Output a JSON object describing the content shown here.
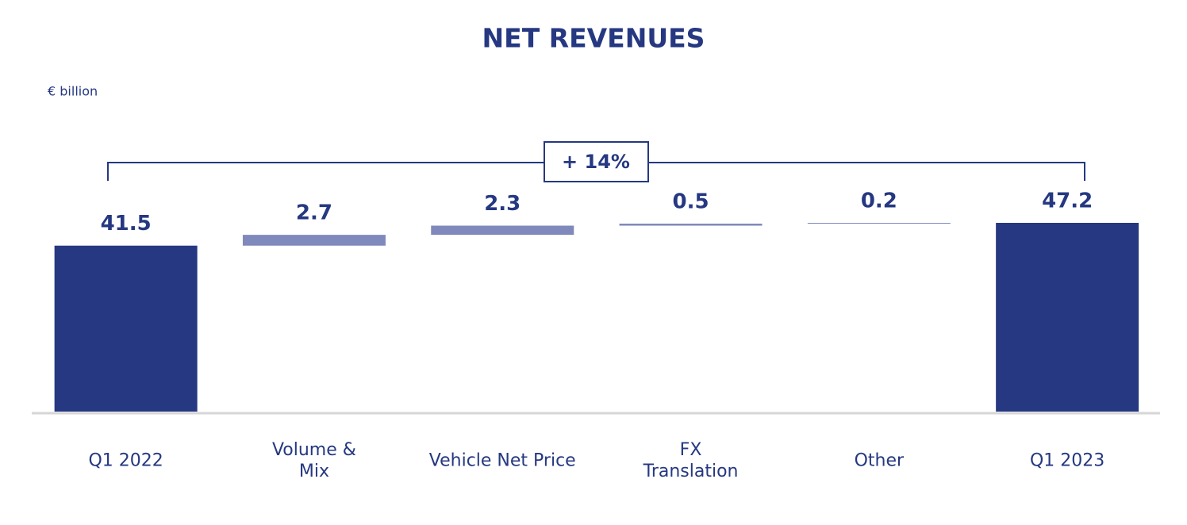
{
  "chart_data": {
    "type": "waterfall",
    "title": "NET REVENUES",
    "unit_label": "€ billion",
    "categories": [
      "Q1 2022",
      "Volume &\nMix",
      "Vehicle Net Price",
      "FX\nTranslation",
      "Other",
      "Q1 2023"
    ],
    "values": [
      41.5,
      2.7,
      2.3,
      0.5,
      0.2,
      47.2
    ],
    "totals": [
      true,
      false,
      false,
      false,
      false,
      true
    ],
    "total_color": "#253881",
    "delta_color": "#7f89bb",
    "annotation": "+ 14%"
  }
}
